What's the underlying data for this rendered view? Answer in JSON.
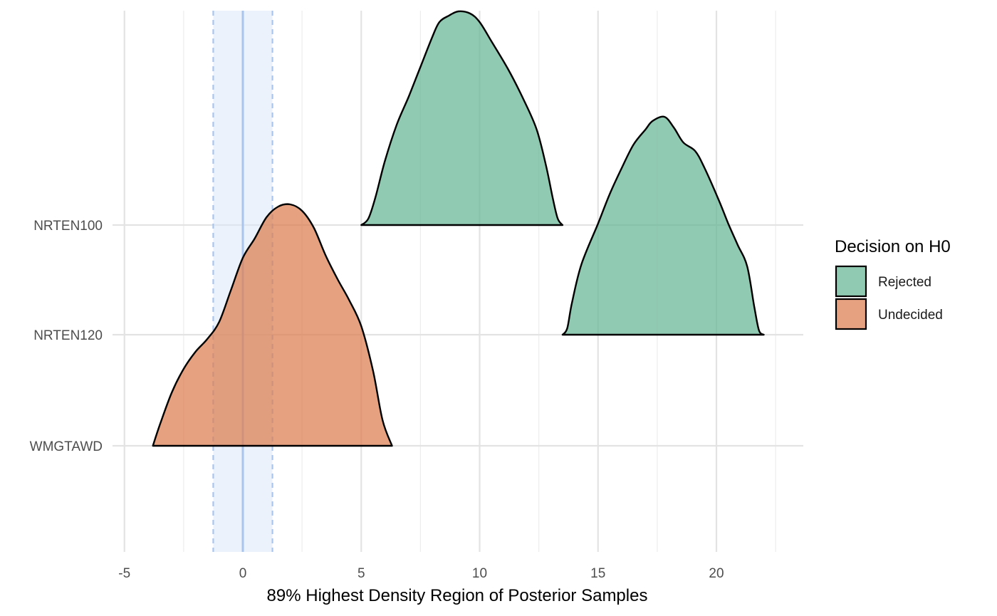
{
  "chart_data": {
    "type": "area",
    "title": "",
    "xlabel": "89% Highest Density Region of Posterior Samples",
    "ylabel": "",
    "xlim": [
      -5,
      23.7
    ],
    "x_ticks": [
      -5,
      0,
      5,
      10,
      15,
      20
    ],
    "x_tick_labels": [
      "-5",
      "0",
      "5",
      "10",
      "15",
      "20"
    ],
    "grid": true,
    "categories": [
      "WMGTAWD",
      "NRTEN120",
      "NRTEN100"
    ],
    "rope": {
      "low": -1.25,
      "high": 1.25,
      "center": 0,
      "fill": "#dce8f8",
      "line_color": "#a9c5ee"
    },
    "legend": {
      "title": "Decision on H0",
      "position": "right",
      "entries": [
        {
          "label": "Rejected",
          "color": "#66b596"
        },
        {
          "label": "Undecided",
          "color": "#dc7d4f"
        }
      ]
    },
    "series": [
      {
        "category": "NRTEN100",
        "decision": "Rejected",
        "density": [
          [
            5.0,
            0.0
          ],
          [
            5.3,
            0.03
          ],
          [
            5.6,
            0.13
          ],
          [
            6.0,
            0.3
          ],
          [
            6.5,
            0.47
          ],
          [
            7.0,
            0.6
          ],
          [
            7.5,
            0.74
          ],
          [
            8.0,
            0.88
          ],
          [
            8.3,
            0.95
          ],
          [
            8.7,
            0.98
          ],
          [
            9.1,
            1.0
          ],
          [
            9.6,
            0.99
          ],
          [
            10.0,
            0.95
          ],
          [
            10.5,
            0.86
          ],
          [
            11.2,
            0.73
          ],
          [
            11.8,
            0.6
          ],
          [
            12.4,
            0.45
          ],
          [
            12.8,
            0.28
          ],
          [
            13.1,
            0.12
          ],
          [
            13.3,
            0.03
          ],
          [
            13.5,
            0.0
          ]
        ]
      },
      {
        "category": "NRTEN120",
        "decision": "Rejected",
        "density": [
          [
            13.5,
            0.0
          ],
          [
            13.7,
            0.03
          ],
          [
            13.9,
            0.15
          ],
          [
            14.3,
            0.33
          ],
          [
            15.0,
            0.52
          ],
          [
            15.5,
            0.66
          ],
          [
            16.0,
            0.78
          ],
          [
            16.5,
            0.89
          ],
          [
            17.0,
            0.96
          ],
          [
            17.3,
            1.0
          ],
          [
            17.8,
            1.02
          ],
          [
            18.2,
            0.97
          ],
          [
            18.6,
            0.9
          ],
          [
            19.1,
            0.86
          ],
          [
            19.5,
            0.78
          ],
          [
            20.1,
            0.63
          ],
          [
            20.5,
            0.52
          ],
          [
            20.9,
            0.42
          ],
          [
            21.3,
            0.32
          ],
          [
            21.6,
            0.13
          ],
          [
            21.8,
            0.02
          ],
          [
            22.0,
            0.0
          ]
        ]
      },
      {
        "category": "WMGTAWD",
        "decision": "Undecided",
        "density": [
          [
            -3.8,
            0.0
          ],
          [
            -3.5,
            0.1
          ],
          [
            -3.0,
            0.25
          ],
          [
            -2.5,
            0.36
          ],
          [
            -2.0,
            0.44
          ],
          [
            -1.5,
            0.5
          ],
          [
            -1.0,
            0.58
          ],
          [
            -0.5,
            0.73
          ],
          [
            0.0,
            0.88
          ],
          [
            0.5,
            0.97
          ],
          [
            1.0,
            1.07
          ],
          [
            1.5,
            1.12
          ],
          [
            2.0,
            1.13
          ],
          [
            2.5,
            1.1
          ],
          [
            3.0,
            1.02
          ],
          [
            3.5,
            0.89
          ],
          [
            4.0,
            0.78
          ],
          [
            4.5,
            0.68
          ],
          [
            5.0,
            0.56
          ],
          [
            5.5,
            0.35
          ],
          [
            5.9,
            0.12
          ],
          [
            6.3,
            0.0
          ]
        ]
      }
    ]
  }
}
